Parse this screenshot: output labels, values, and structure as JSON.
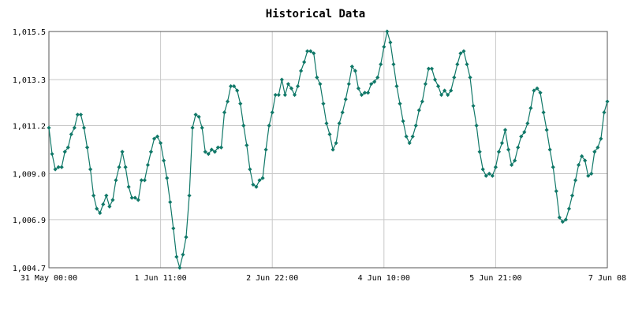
{
  "chart_data": {
    "type": "line",
    "title": "Historical Data",
    "xlabel": "",
    "ylabel": "",
    "ylim": [
      1004.7,
      1015.5
    ],
    "grid": true,
    "legend": "none",
    "y_ticks": [
      {
        "value": 1004.7,
        "label": "1,004.7"
      },
      {
        "value": 1006.9,
        "label": "1,006.9"
      },
      {
        "value": 1009.0,
        "label": "1,009.0"
      },
      {
        "value": 1011.2,
        "label": "1,011.2"
      },
      {
        "value": 1013.3,
        "label": "1,013.3"
      },
      {
        "value": 1015.5,
        "label": "1,015.5"
      }
    ],
    "x_ticks": [
      {
        "value": 0,
        "label": "31 May 00:00"
      },
      {
        "value": 35,
        "label": "1 Jun 11:00"
      },
      {
        "value": 70,
        "label": "2 Jun 22:00"
      },
      {
        "value": 105,
        "label": "4 Jun 10:00"
      },
      {
        "value": 140,
        "label": "5 Jun 21:00"
      },
      {
        "value": 175,
        "label": "7 Jun 08"
      }
    ],
    "x_range": [
      0,
      175
    ],
    "x_unit": "hours since 31 May 00:00",
    "colors": {
      "line": "#107868",
      "marker": "#107868",
      "grid": "#c8c8c8",
      "frame": "#555555"
    },
    "series": [
      {
        "name": "",
        "values": [
          [
            0,
            1011.1
          ],
          [
            1,
            1009.9
          ],
          [
            2,
            1009.2
          ],
          [
            3,
            1009.3
          ],
          [
            4,
            1009.3
          ],
          [
            5,
            1010.0
          ],
          [
            6,
            1010.2
          ],
          [
            7,
            1010.8
          ],
          [
            8,
            1011.1
          ],
          [
            9,
            1011.7
          ],
          [
            10,
            1011.7
          ],
          [
            11,
            1011.1
          ],
          [
            12,
            1010.2
          ],
          [
            13,
            1009.2
          ],
          [
            14,
            1008.0
          ],
          [
            15,
            1007.4
          ],
          [
            16,
            1007.2
          ],
          [
            17,
            1007.6
          ],
          [
            18,
            1008.0
          ],
          [
            19,
            1007.5
          ],
          [
            20,
            1007.8
          ],
          [
            21,
            1008.7
          ],
          [
            22,
            1009.3
          ],
          [
            23,
            1010.0
          ],
          [
            24,
            1009.3
          ],
          [
            25,
            1008.4
          ],
          [
            26,
            1007.9
          ],
          [
            27,
            1007.9
          ],
          [
            28,
            1007.8
          ],
          [
            29,
            1008.7
          ],
          [
            30,
            1008.7
          ],
          [
            31,
            1009.4
          ],
          [
            32,
            1010.0
          ],
          [
            33,
            1010.6
          ],
          [
            34,
            1010.7
          ],
          [
            35,
            1010.4
          ],
          [
            36,
            1009.6
          ],
          [
            37,
            1008.8
          ],
          [
            38,
            1007.7
          ],
          [
            39,
            1006.5
          ],
          [
            40,
            1005.2
          ],
          [
            41,
            1004.7
          ],
          [
            42,
            1005.3
          ],
          [
            43,
            1006.1
          ],
          [
            44,
            1008.0
          ],
          [
            45,
            1011.1
          ],
          [
            46,
            1011.7
          ],
          [
            47,
            1011.6
          ],
          [
            48,
            1011.1
          ],
          [
            49,
            1010.0
          ],
          [
            50,
            1009.9
          ],
          [
            51,
            1010.1
          ],
          [
            52,
            1010.0
          ],
          [
            53,
            1010.2
          ],
          [
            54,
            1010.2
          ],
          [
            55,
            1011.8
          ],
          [
            56,
            1012.3
          ],
          [
            57,
            1013.0
          ],
          [
            58,
            1013.0
          ],
          [
            59,
            1012.8
          ],
          [
            60,
            1012.2
          ],
          [
            61,
            1011.2
          ],
          [
            62,
            1010.3
          ],
          [
            63,
            1009.2
          ],
          [
            64,
            1008.5
          ],
          [
            65,
            1008.4
          ],
          [
            66,
            1008.7
          ],
          [
            67,
            1008.8
          ],
          [
            68,
            1010.1
          ],
          [
            69,
            1011.2
          ],
          [
            70,
            1011.8
          ],
          [
            71,
            1012.6
          ],
          [
            72,
            1012.6
          ],
          [
            73,
            1013.3
          ],
          [
            74,
            1012.6
          ],
          [
            75,
            1013.1
          ],
          [
            76,
            1012.9
          ],
          [
            77,
            1012.6
          ],
          [
            78,
            1013.0
          ],
          [
            79,
            1013.7
          ],
          [
            80,
            1014.1
          ],
          [
            81,
            1014.6
          ],
          [
            82,
            1014.6
          ],
          [
            83,
            1014.5
          ],
          [
            84,
            1013.4
          ],
          [
            85,
            1013.1
          ],
          [
            86,
            1012.2
          ],
          [
            87,
            1011.3
          ],
          [
            88,
            1010.8
          ],
          [
            89,
            1010.1
          ],
          [
            90,
            1010.4
          ],
          [
            91,
            1011.3
          ],
          [
            92,
            1011.8
          ],
          [
            93,
            1012.4
          ],
          [
            94,
            1013.1
          ],
          [
            95,
            1013.9
          ],
          [
            96,
            1013.7
          ],
          [
            97,
            1012.9
          ],
          [
            98,
            1012.6
          ],
          [
            99,
            1012.7
          ],
          [
            100,
            1012.7
          ],
          [
            101,
            1013.1
          ],
          [
            102,
            1013.2
          ],
          [
            103,
            1013.4
          ],
          [
            104,
            1014.0
          ],
          [
            105,
            1014.8
          ],
          [
            106,
            1015.5
          ],
          [
            107,
            1015.0
          ],
          [
            108,
            1014.0
          ],
          [
            109,
            1013.0
          ],
          [
            110,
            1012.2
          ],
          [
            111,
            1011.4
          ],
          [
            112,
            1010.7
          ],
          [
            113,
            1010.4
          ],
          [
            114,
            1010.7
          ],
          [
            115,
            1011.2
          ],
          [
            116,
            1011.9
          ],
          [
            117,
            1012.3
          ],
          [
            118,
            1013.1
          ],
          [
            119,
            1013.8
          ],
          [
            120,
            1013.8
          ],
          [
            121,
            1013.3
          ],
          [
            122,
            1013.0
          ],
          [
            123,
            1012.6
          ],
          [
            124,
            1012.8
          ],
          [
            125,
            1012.6
          ],
          [
            126,
            1012.8
          ],
          [
            127,
            1013.4
          ],
          [
            128,
            1014.0
          ],
          [
            129,
            1014.5
          ],
          [
            130,
            1014.6
          ],
          [
            131,
            1014.0
          ],
          [
            132,
            1013.4
          ],
          [
            133,
            1012.1
          ],
          [
            134,
            1011.2
          ],
          [
            135,
            1010.0
          ],
          [
            136,
            1009.2
          ],
          [
            137,
            1008.9
          ],
          [
            138,
            1009.0
          ],
          [
            139,
            1008.9
          ],
          [
            140,
            1009.3
          ],
          [
            141,
            1010.0
          ],
          [
            142,
            1010.4
          ],
          [
            143,
            1011.0
          ],
          [
            144,
            1010.1
          ],
          [
            145,
            1009.4
          ],
          [
            146,
            1009.6
          ],
          [
            147,
            1010.2
          ],
          [
            148,
            1010.7
          ],
          [
            149,
            1010.9
          ],
          [
            150,
            1011.3
          ],
          [
            151,
            1012.0
          ],
          [
            152,
            1012.8
          ],
          [
            153,
            1012.9
          ],
          [
            154,
            1012.7
          ],
          [
            155,
            1011.8
          ],
          [
            156,
            1011.0
          ],
          [
            157,
            1010.1
          ],
          [
            158,
            1009.3
          ],
          [
            159,
            1008.2
          ],
          [
            160,
            1007.0
          ],
          [
            161,
            1006.8
          ],
          [
            162,
            1006.9
          ],
          [
            163,
            1007.4
          ],
          [
            164,
            1008.0
          ],
          [
            165,
            1008.7
          ],
          [
            166,
            1009.4
          ],
          [
            167,
            1009.8
          ],
          [
            168,
            1009.6
          ],
          [
            169,
            1008.9
          ],
          [
            170,
            1009.0
          ],
          [
            171,
            1010.0
          ],
          [
            172,
            1010.2
          ],
          [
            173,
            1010.6
          ],
          [
            174,
            1011.8
          ],
          [
            175,
            1012.3
          ]
        ]
      }
    ]
  }
}
